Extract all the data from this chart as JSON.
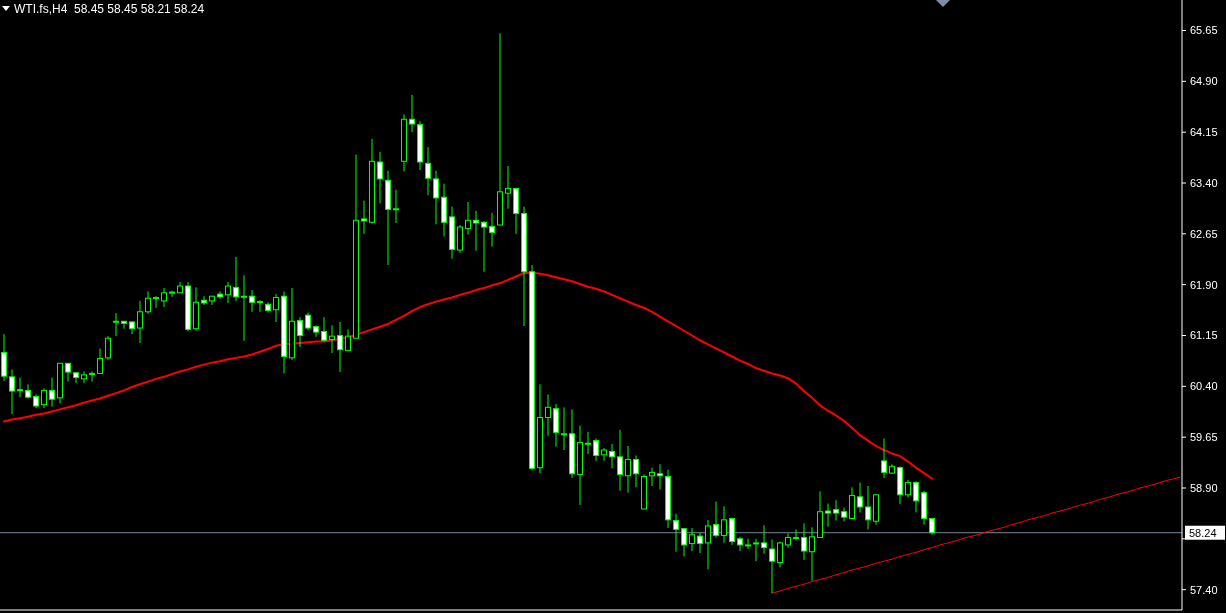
{
  "chart_data": {
    "type": "candlestick",
    "title": "WTI.fs,H4  58.45 58.45 58.21 58.24",
    "color": "#00ff00",
    "categories": [
      null,
      null,
      null,
      null,
      null,
      null,
      null,
      null,
      null,
      null,
      null,
      null,
      null,
      null,
      null,
      null,
      null,
      null,
      null,
      null,
      null,
      null,
      null,
      null,
      null,
      null,
      null,
      null,
      null,
      null,
      null,
      null,
      null,
      null,
      null,
      null,
      null,
      null,
      null,
      null,
      null,
      null,
      null,
      null,
      null,
      null,
      null,
      null,
      null,
      null,
      null,
      null,
      null,
      null,
      null,
      null,
      null,
      null,
      null,
      null,
      null,
      null,
      null,
      null,
      null,
      null,
      null,
      null,
      null,
      null,
      null,
      null,
      null,
      null,
      null,
      null,
      null,
      null,
      null,
      null,
      null,
      null,
      null,
      null,
      null,
      null,
      null,
      null,
      null,
      null,
      null,
      null,
      null,
      null,
      null,
      null,
      null,
      null,
      null,
      null,
      null,
      null,
      null,
      null,
      null,
      null,
      null,
      null,
      null,
      null,
      null,
      null,
      null,
      null,
      null,
      null,
      null,
      null,
      null,
      null,
      null,
      null,
      null,
      null,
      null,
      null,
      null,
      null,
      null,
      null,
      null,
      null,
      null,
      null,
      null,
      null,
      null,
      null,
      null,
      null,
      null,
      null,
      null,
      null,
      null,
      null,
      null,
      null
    ],
    "ohlc": [
      [
        60.9,
        61.17,
        60.48,
        60.55
      ],
      [
        60.54,
        60.65,
        59.99,
        60.33
      ],
      [
        60.35,
        60.53,
        60.24,
        60.34
      ],
      [
        60.34,
        60.43,
        60.22,
        60.24
      ],
      [
        60.25,
        60.28,
        60.08,
        60.11
      ],
      [
        60.13,
        60.37,
        60.08,
        60.34
      ],
      [
        60.34,
        60.53,
        60.1,
        60.21
      ],
      [
        60.23,
        60.74,
        60.15,
        60.74
      ],
      [
        60.74,
        60.74,
        60.47,
        60.61
      ],
      [
        60.6,
        60.6,
        60.45,
        60.53
      ],
      [
        60.51,
        60.62,
        60.45,
        60.57
      ],
      [
        60.59,
        60.62,
        60.47,
        60.58
      ],
      [
        60.59,
        60.96,
        60.59,
        60.81
      ],
      [
        60.82,
        61.14,
        60.79,
        61.11
      ],
      [
        61.35,
        61.48,
        61.14,
        61.36
      ],
      [
        61.36,
        61.36,
        61.25,
        61.33
      ],
      [
        61.35,
        61.36,
        61.17,
        61.25
      ],
      [
        61.26,
        61.66,
        61.04,
        61.5
      ],
      [
        61.5,
        61.8,
        61.47,
        61.7
      ],
      [
        61.7,
        61.73,
        61.56,
        61.71
      ],
      [
        61.66,
        61.85,
        61.57,
        61.78
      ],
      [
        61.78,
        61.81,
        61.72,
        61.79
      ],
      [
        61.78,
        61.94,
        61.78,
        61.88
      ],
      [
        61.88,
        61.94,
        61.21,
        61.24
      ],
      [
        61.25,
        61.86,
        61.22,
        61.64
      ],
      [
        61.67,
        61.73,
        61.6,
        61.63
      ],
      [
        61.66,
        61.73,
        61.6,
        61.73
      ],
      [
        61.76,
        61.8,
        61.69,
        61.72
      ],
      [
        61.75,
        61.94,
        61.63,
        61.88
      ],
      [
        61.86,
        62.31,
        61.66,
        61.72
      ],
      [
        61.73,
        62.04,
        61.07,
        61.72
      ],
      [
        61.73,
        61.82,
        61.5,
        61.64
      ],
      [
        61.65,
        61.67,
        61.5,
        61.64
      ],
      [
        61.61,
        61.64,
        61.49,
        61.52
      ],
      [
        61.53,
        61.76,
        61.35,
        61.71
      ],
      [
        61.73,
        61.8,
        60.59,
        60.84
      ],
      [
        60.82,
        61.85,
        60.79,
        61.36
      ],
      [
        61.37,
        61.42,
        60.98,
        61.15
      ],
      [
        61.45,
        61.49,
        61.23,
        61.26
      ],
      [
        61.28,
        61.3,
        61.13,
        61.2
      ],
      [
        61.21,
        61.42,
        61.06,
        61.08
      ],
      [
        61.09,
        61.3,
        60.89,
        61.14
      ],
      [
        61.15,
        61.35,
        60.61,
        60.94
      ],
      [
        60.93,
        61.24,
        60.93,
        61.14
      ],
      [
        61.11,
        63.82,
        61.11,
        62.85
      ],
      [
        62.87,
        63.14,
        62.65,
        62.84
      ],
      [
        62.82,
        64.05,
        62.8,
        63.72
      ],
      [
        63.71,
        63.86,
        63.1,
        63.46
      ],
      [
        63.44,
        63.58,
        62.19,
        63.01
      ],
      [
        63.02,
        63.3,
        62.81,
        63.02
      ],
      [
        63.72,
        64.41,
        63.57,
        64.34
      ],
      [
        64.34,
        64.7,
        64.15,
        64.27
      ],
      [
        64.26,
        64.31,
        63.59,
        63.71
      ],
      [
        63.69,
        63.93,
        63.22,
        63.47
      ],
      [
        63.46,
        63.58,
        62.79,
        63.18
      ],
      [
        63.19,
        63.39,
        62.61,
        62.82
      ],
      [
        62.9,
        63.05,
        62.28,
        62.42
      ],
      [
        62.41,
        62.78,
        62.37,
        62.75
      ],
      [
        62.73,
        63.12,
        62.64,
        62.85
      ],
      [
        62.85,
        62.99,
        62.4,
        62.81
      ],
      [
        62.82,
        62.84,
        62.09,
        62.75
      ],
      [
        62.76,
        62.96,
        62.46,
        62.67
      ],
      [
        62.78,
        65.61,
        62.78,
        63.27
      ],
      [
        63.25,
        63.65,
        63.02,
        63.32
      ],
      [
        63.32,
        63.32,
        62.65,
        62.95
      ],
      [
        62.95,
        63.05,
        61.29,
        62.09
      ],
      [
        62.09,
        62.19,
        59.16,
        59.19
      ],
      [
        59.2,
        60.43,
        59.12,
        59.94
      ],
      [
        59.94,
        60.28,
        59.67,
        60.09
      ],
      [
        60.07,
        60.14,
        59.51,
        59.72
      ],
      [
        59.7,
        60.09,
        59.46,
        59.7
      ],
      [
        59.7,
        60.06,
        59.05,
        59.11
      ],
      [
        59.1,
        59.82,
        58.65,
        59.57
      ],
      [
        59.56,
        59.73,
        59.4,
        59.56
      ],
      [
        59.6,
        59.63,
        59.3,
        59.38
      ],
      [
        59.39,
        59.49,
        59.3,
        59.46
      ],
      [
        59.44,
        59.55,
        59.19,
        59.36
      ],
      [
        59.36,
        59.76,
        58.86,
        59.1
      ],
      [
        59.08,
        59.52,
        58.83,
        59.32
      ],
      [
        59.32,
        59.38,
        58.91,
        59.11
      ],
      [
        58.59,
        59.1,
        58.59,
        59.07
      ],
      [
        59.08,
        59.2,
        58.93,
        59.13
      ],
      [
        59.11,
        59.25,
        58.88,
        59.08
      ],
      [
        59.07,
        59.17,
        58.31,
        58.43
      ],
      [
        58.42,
        58.52,
        57.96,
        58.29
      ],
      [
        58.3,
        58.31,
        57.89,
        58.06
      ],
      [
        58.08,
        58.31,
        57.97,
        58.21
      ],
      [
        58.19,
        58.24,
        57.94,
        58.08
      ],
      [
        58.09,
        58.43,
        57.7,
        58.34
      ],
      [
        58.36,
        58.7,
        58.17,
        58.2
      ],
      [
        58.2,
        58.63,
        58.09,
        58.43
      ],
      [
        58.45,
        58.45,
        58.06,
        58.11
      ],
      [
        58.15,
        58.18,
        57.97,
        58.06
      ],
      [
        58.06,
        58.15,
        58.0,
        58.06
      ],
      [
        58.09,
        58.15,
        57.82,
        58.09
      ],
      [
        58.09,
        58.35,
        57.93,
        58.02
      ],
      [
        58.0,
        58.14,
        57.35,
        57.82
      ],
      [
        57.8,
        58.11,
        57.73,
        58.09
      ],
      [
        58.06,
        58.23,
        58.02,
        58.17
      ],
      [
        58.17,
        58.29,
        58.13,
        58.17
      ],
      [
        58.17,
        58.38,
        57.84,
        57.97
      ],
      [
        57.96,
        58.32,
        57.53,
        58.18
      ],
      [
        58.17,
        58.85,
        58.17,
        58.55
      ],
      [
        58.56,
        58.67,
        58.33,
        58.53
      ],
      [
        58.58,
        58.72,
        58.42,
        58.53
      ],
      [
        58.55,
        58.61,
        58.41,
        58.47
      ],
      [
        58.45,
        58.91,
        58.45,
        58.79
      ],
      [
        58.77,
        58.98,
        58.54,
        58.62
      ],
      [
        58.62,
        58.93,
        58.29,
        58.43
      ],
      [
        58.41,
        58.8,
        58.36,
        58.8
      ],
      [
        59.3,
        59.63,
        59.05,
        59.13
      ],
      [
        59.12,
        59.25,
        59.11,
        59.22
      ],
      [
        59.2,
        59.22,
        58.66,
        58.8
      ],
      [
        58.8,
        59.02,
        58.76,
        58.98
      ],
      [
        58.98,
        59.0,
        58.54,
        58.71
      ],
      [
        58.83,
        58.86,
        58.36,
        58.45
      ],
      [
        58.45,
        58.45,
        58.21,
        58.24
      ],
      null,
      null,
      null,
      null,
      null,
      null,
      null,
      null,
      null,
      null,
      null,
      null,
      null,
      null,
      null,
      null,
      null,
      null,
      null,
      null,
      null,
      null,
      null,
      null,
      null,
      null,
      null,
      null,
      null,
      null,
      null
    ],
    "series": [
      {
        "type": "line",
        "color": "#ff0000",
        "values": [
          59.88,
          59.91,
          59.93,
          59.95,
          59.98,
          60.0,
          60.03,
          60.06,
          60.09,
          60.12,
          60.16,
          60.19,
          60.22,
          60.26,
          60.3,
          60.34,
          60.39,
          60.43,
          60.47,
          60.51,
          60.54,
          60.58,
          60.62,
          60.65,
          60.69,
          60.72,
          60.75,
          60.77,
          60.8,
          60.82,
          60.84,
          60.87,
          60.91,
          60.95,
          61.0,
          61.02,
          61.03,
          61.04,
          61.05,
          61.06,
          61.06,
          61.08,
          61.1,
          61.12,
          61.16,
          61.2,
          61.24,
          61.28,
          61.32,
          61.38,
          61.44,
          61.51,
          61.57,
          61.61,
          61.65,
          61.68,
          61.71,
          61.75,
          61.78,
          61.82,
          61.85,
          61.89,
          61.92,
          61.97,
          62.02,
          62.07,
          62.08,
          62.06,
          62.04,
          62.01,
          61.98,
          61.95,
          61.91,
          61.87,
          61.84,
          61.8,
          61.75,
          61.7,
          61.65,
          61.6,
          61.56,
          61.5,
          61.43,
          61.36,
          61.29,
          61.22,
          61.15,
          61.08,
          61.02,
          60.96,
          60.9,
          60.84,
          60.78,
          60.73,
          60.67,
          60.63,
          60.59,
          60.56,
          60.52,
          60.44,
          60.33,
          60.23,
          60.12,
          60.04,
          59.97,
          59.89,
          59.79,
          59.68,
          59.6,
          59.52,
          59.46,
          59.41,
          59.37,
          59.29,
          59.2,
          59.12,
          59.04,
          null,
          null,
          null,
          null,
          null,
          null,
          null,
          null,
          null,
          null,
          null,
          null,
          null,
          null,
          null,
          null,
          null,
          null,
          null,
          null,
          null,
          null,
          null,
          null,
          null,
          null,
          null,
          null,
          null,
          null,
          null
        ]
      },
      {
        "type": "line",
        "color": "#ff0000",
        "values": [
          null,
          null,
          null,
          null,
          null,
          null,
          null,
          null,
          null,
          null,
          null,
          null,
          null,
          null,
          null,
          null,
          null,
          null,
          null,
          null,
          null,
          null,
          null,
          null,
          null,
          null,
          null,
          null,
          null,
          null,
          null,
          null,
          null,
          null,
          null,
          null,
          null,
          null,
          null,
          null,
          null,
          null,
          null,
          null,
          null,
          null,
          null,
          null,
          null,
          null,
          null,
          null,
          null,
          null,
          null,
          null,
          null,
          null,
          null,
          null,
          null,
          null,
          null,
          null,
          null,
          null,
          null,
          null,
          null,
          null,
          null,
          null,
          null,
          null,
          null,
          null,
          null,
          null,
          null,
          null,
          null,
          null,
          null,
          null,
          null,
          null,
          null,
          null,
          null,
          null,
          null,
          null,
          null,
          null,
          null,
          null,
          57.35,
          57.38,
          57.42,
          57.45,
          57.48,
          57.52,
          57.55,
          57.58,
          57.62,
          57.65,
          57.69,
          57.72,
          57.75,
          57.79,
          57.82,
          57.85,
          57.89,
          57.92,
          57.95,
          57.99,
          58.02,
          58.06,
          58.09,
          58.12,
          58.16,
          58.19,
          58.22,
          58.26,
          58.29,
          58.32,
          58.36,
          58.39,
          58.43,
          58.46,
          58.49,
          58.53,
          58.56,
          58.59,
          58.63,
          58.66,
          58.69,
          58.73,
          58.76,
          58.8,
          58.83,
          58.86,
          58.9,
          58.93,
          58.96,
          59.0,
          59.03,
          59.06
        ]
      }
    ],
    "ylim": [
      57.1,
      66.1
    ],
    "yticks": [
      {
        "value": 65.65,
        "label": "65.65"
      },
      {
        "value": 64.9,
        "label": "64.90"
      },
      {
        "value": 64.15,
        "label": "64.15"
      },
      {
        "value": 63.4,
        "label": "63.40"
      },
      {
        "value": 62.65,
        "label": "62.65"
      },
      {
        "value": 61.9,
        "label": "61.90"
      },
      {
        "value": 61.15,
        "label": "61.15"
      },
      {
        "value": 60.4,
        "label": "60.40"
      },
      {
        "value": 59.65,
        "label": "59.65"
      },
      {
        "value": 58.9,
        "label": "58.90"
      },
      {
        "value": 58.15,
        "label": null
      },
      {
        "value": 57.4,
        "label": "57.40"
      }
    ],
    "tick_labels": "y",
    "ref_lines": [
      {
        "axis": "y",
        "value": 58.24,
        "label": "58.24",
        "color": "#778899"
      }
    ]
  }
}
